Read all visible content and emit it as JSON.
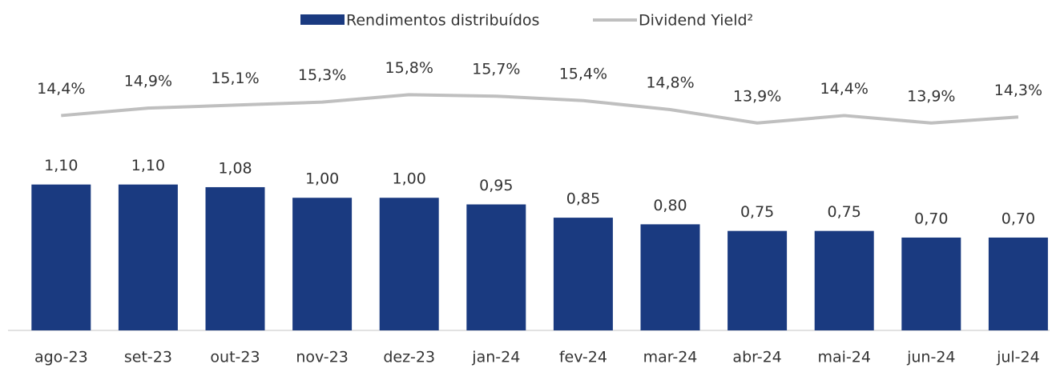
{
  "chart_data": {
    "type": "bar-line",
    "categories": [
      "ago-23",
      "set-23",
      "out-23",
      "nov-23",
      "dez-23",
      "jan-24",
      "fev-24",
      "mar-24",
      "abr-24",
      "mai-24",
      "jun-24",
      "jul-24"
    ],
    "series": [
      {
        "name": "Rendimentos distribuídos",
        "type": "bar",
        "color": "#1a3a80",
        "values": [
          1.1,
          1.1,
          1.08,
          1.0,
          1.0,
          0.95,
          0.85,
          0.8,
          0.75,
          0.75,
          0.7,
          0.7
        ],
        "value_labels": [
          "1,10",
          "1,10",
          "1,08",
          "1,00",
          "1,00",
          "0,95",
          "0,85",
          "0,80",
          "0,75",
          "0,75",
          "0,70",
          "0,70"
        ]
      },
      {
        "name": "Dividend Yield²",
        "type": "line",
        "axis": "y2",
        "color": "#bfbfbf",
        "values": [
          14.4,
          14.9,
          15.1,
          15.3,
          15.8,
          15.7,
          15.4,
          14.8,
          13.9,
          14.4,
          13.9,
          14.3
        ],
        "value_labels": [
          "14,4%",
          "14,9%",
          "15,1%",
          "15,3%",
          "15,8%",
          "15,7%",
          "15,4%",
          "14,8%",
          "13,9%",
          "14,4%",
          "13,9%",
          "14,3%"
        ]
      }
    ],
    "ylim": [
      0,
      2.25
    ],
    "y2lim": [
      0,
      20
    ],
    "legend": "top"
  }
}
